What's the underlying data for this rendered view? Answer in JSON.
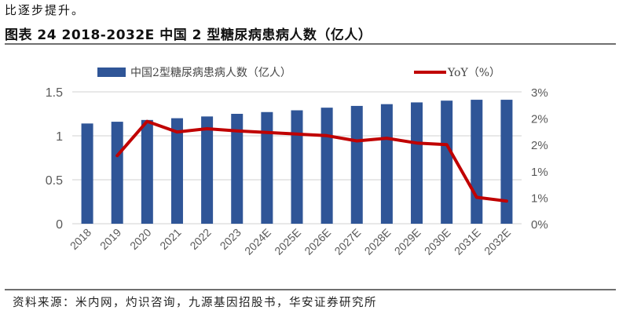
{
  "intro_text": "比逐步提升。",
  "figure": {
    "title": "图表 24 2018-2032E 中国 2 型糖尿病患病人数（亿人）",
    "source": "资料来源：米内网，灼识咨询，九源基因招股书，华安证券研究所"
  },
  "colors": {
    "bar": "#2F5597",
    "line": "#C00000",
    "grid": "#D9D9D9",
    "axis_text": "#595959"
  },
  "chart_data": {
    "type": "bar",
    "title": "2018-2032E 中国 2 型糖尿病患病人数（亿人）",
    "xlabel": "",
    "ylabel": "",
    "categories": [
      "2018",
      "2019",
      "2020",
      "2021",
      "2022",
      "2023",
      "2024E",
      "2025E",
      "2026E",
      "2027E",
      "2028E",
      "2029E",
      "2030E",
      "2031E",
      "2032E"
    ],
    "series": [
      {
        "name": "中国2型糖尿病患病人数（亿人）",
        "type": "bar",
        "axis": "left",
        "values": [
          1.14,
          1.16,
          1.18,
          1.2,
          1.22,
          1.25,
          1.27,
          1.29,
          1.32,
          1.34,
          1.36,
          1.38,
          1.4,
          1.41,
          1.41
        ]
      },
      {
        "name": "YoY（%）",
        "type": "line",
        "axis": "right",
        "values": [
          null,
          1.29,
          1.94,
          1.74,
          1.8,
          1.76,
          1.73,
          1.7,
          1.67,
          1.57,
          1.62,
          1.53,
          1.5,
          0.5,
          0.43
        ]
      }
    ],
    "ylim": [
      0,
      1.5
    ],
    "y_ticks": [
      0,
      0.5,
      1,
      1.5
    ],
    "y_tick_labels": [
      "0",
      "0.5",
      "1",
      "1.5"
    ],
    "y2lim": [
      0,
      2.5
    ],
    "y2_ticks": [
      0,
      0.5,
      1,
      1.5,
      2,
      2.5
    ],
    "y2_tick_labels": [
      "0%",
      "1%",
      "1%",
      "2%",
      "2%",
      "3%"
    ],
    "grid": true,
    "legend_position": "top"
  }
}
